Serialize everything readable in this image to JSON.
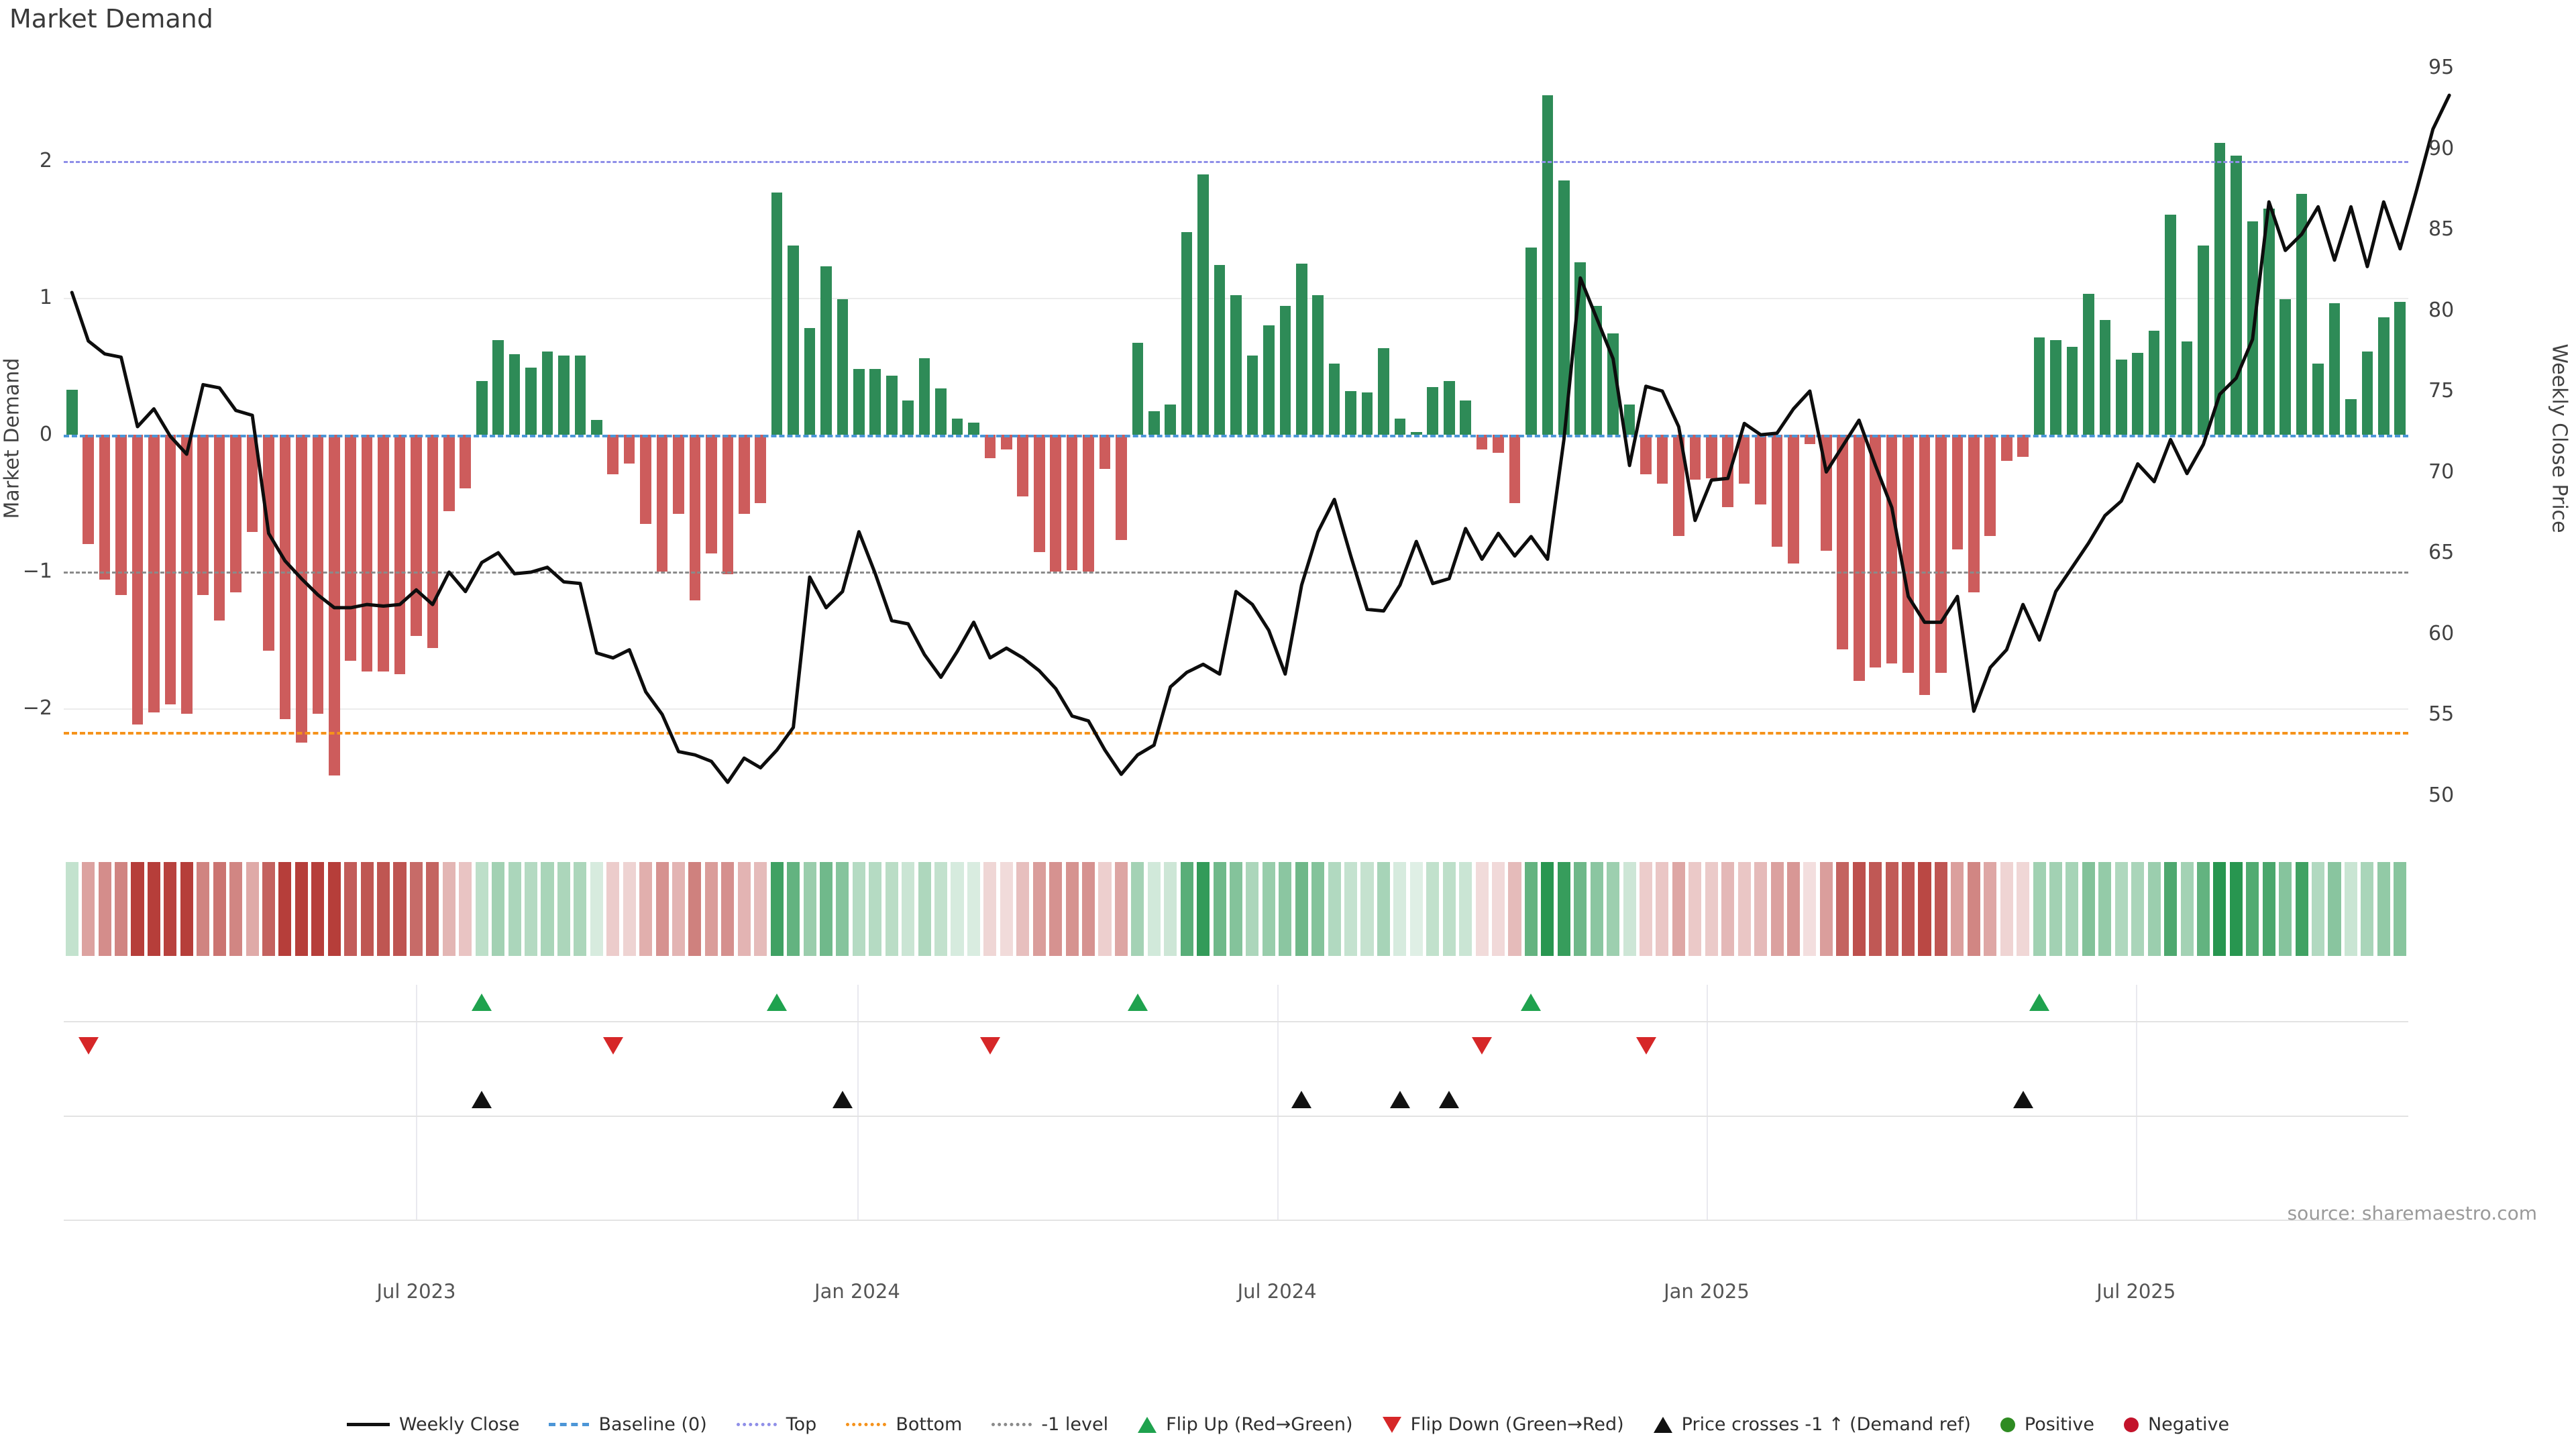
{
  "title": "Market Demand",
  "left_axis_title": "Market Demand",
  "right_axis_title": "Weekly Close Price",
  "source": "source: sharemaestro.com",
  "colors": {
    "positive_bar": "#2E8B57",
    "negative_bar": "#CD5C5C",
    "price_line": "#0d0d0d",
    "baseline": "#4C96D7",
    "top_line": "#8f8fe8",
    "bottom_line": "#F5921B",
    "minus1_line": "#8a8a8a",
    "flip_up": "#1fa24e",
    "flip_down": "#d62728",
    "price_cross": "#111111",
    "positive_dot": "#2E8B22",
    "negative_dot": "#C3132B"
  },
  "left_ticks": [
    2,
    1,
    0,
    -1,
    -2
  ],
  "right_ticks": [
    95,
    90,
    85,
    80,
    75,
    70,
    65,
    60,
    55,
    50
  ],
  "x_ticks": [
    {
      "label": "Jul 2023",
      "week": 22.0
    },
    {
      "label": "Jan 2024",
      "week": 48.9
    },
    {
      "label": "Jul 2024",
      "week": 74.5
    },
    {
      "label": "Jan 2025",
      "week": 100.7
    },
    {
      "label": "Jul 2025",
      "week": 126.9
    }
  ],
  "legend": [
    {
      "glyph": "line",
      "color": "#111111",
      "label": "Weekly Close"
    },
    {
      "glyph": "dash",
      "color": "#4C96D7",
      "label": "Baseline (0)"
    },
    {
      "glyph": "dot",
      "color": "#8f8fe8",
      "label": "Top"
    },
    {
      "glyph": "dot",
      "color": "#F5921B",
      "label": "Bottom"
    },
    {
      "glyph": "dot",
      "color": "#8a8a8a",
      "label": "-1 level"
    },
    {
      "glyph": "tri-up",
      "color": "#1fa24e",
      "label": "Flip Up (Red→Green)"
    },
    {
      "glyph": "tri-down",
      "color": "#d62728",
      "label": "Flip Down (Green→Red)"
    },
    {
      "glyph": "tri-up",
      "color": "#111111",
      "label": "Price crosses -1 ↑ (Demand ref)"
    },
    {
      "glyph": "circle",
      "color": "#2E8B22",
      "label": "Positive"
    },
    {
      "glyph": "circle",
      "color": "#C3132B",
      "label": "Negative"
    }
  ],
  "chart_data": {
    "type": "bar+line",
    "title": "Market Demand",
    "xlabel": "",
    "ylabel_left": "Market Demand",
    "ylabel_right": "Weekly Close Price",
    "ylim_left": [
      -2.88,
      2.82
    ],
    "ylim_right": [
      47.9,
      96.1
    ],
    "grid": true,
    "legend_position": "bottom",
    "reference_lines": {
      "baseline": 0,
      "top": 2,
      "minus1": -1,
      "bottom": -2.17
    },
    "weeks": 143,
    "demand": [
      0.33,
      -0.8,
      -1.06,
      -1.17,
      -2.12,
      -2.03,
      -1.97,
      -2.04,
      -1.17,
      -1.36,
      -1.15,
      -0.71,
      -1.58,
      -2.08,
      -2.25,
      -2.04,
      -2.49,
      -1.65,
      -1.73,
      -1.73,
      -1.75,
      -1.47,
      -1.56,
      -0.56,
      -0.39,
      0.39,
      0.69,
      0.59,
      0.49,
      0.61,
      0.58,
      0.58,
      0.11,
      -0.29,
      -0.21,
      -0.65,
      -1.0,
      -0.58,
      -1.21,
      -0.87,
      -1.02,
      -0.58,
      -0.5,
      1.77,
      1.38,
      0.78,
      1.23,
      0.99,
      0.48,
      0.48,
      0.43,
      0.25,
      0.56,
      0.34,
      0.12,
      0.09,
      -0.17,
      -0.11,
      -0.45,
      -0.86,
      -1.0,
      -0.99,
      -1.0,
      -0.25,
      -0.77,
      0.67,
      0.17,
      0.22,
      1.48,
      1.9,
      1.24,
      1.02,
      0.58,
      0.8,
      0.94,
      1.25,
      1.02,
      0.52,
      0.32,
      0.31,
      0.63,
      0.12,
      0.02,
      0.35,
      0.39,
      0.25,
      -0.11,
      -0.13,
      -0.5,
      1.37,
      2.48,
      1.86,
      1.26,
      0.94,
      0.74,
      0.22,
      -0.29,
      -0.36,
      -0.74,
      -0.33,
      -0.32,
      -0.53,
      -0.36,
      -0.51,
      -0.82,
      -0.94,
      -0.07,
      -0.85,
      -1.57,
      -1.8,
      -1.7,
      -1.67,
      -1.74,
      -1.9,
      -1.74,
      -0.84,
      -1.15,
      -0.74,
      -0.19,
      -0.16,
      0.71,
      0.69,
      0.64,
      1.03,
      0.84,
      0.55,
      0.6,
      0.76,
      1.61,
      0.68,
      1.38,
      2.13,
      2.04,
      1.56,
      1.65,
      0.99,
      1.76,
      0.52,
      0.96,
      0.26,
      0.61,
      0.86,
      0.97
    ],
    "price": [
      81.1,
      78.1,
      77.3,
      77.1,
      72.8,
      73.9,
      72.2,
      71.1,
      75.4,
      75.2,
      73.8,
      73.5,
      66.2,
      64.5,
      63.4,
      62.4,
      61.6,
      61.6,
      61.8,
      61.7,
      61.8,
      62.7,
      61.8,
      63.8,
      62.6,
      64.4,
      65.0,
      63.7,
      63.8,
      64.1,
      63.2,
      63.1,
      58.8,
      58.5,
      59.0,
      56.4,
      55.0,
      52.7,
      52.5,
      52.1,
      50.8,
      52.3,
      51.7,
      52.8,
      54.2,
      63.5,
      61.6,
      62.6,
      66.3,
      63.7,
      60.8,
      60.6,
      58.7,
      57.3,
      58.9,
      60.7,
      58.5,
      59.1,
      58.5,
      57.7,
      56.6,
      54.9,
      54.6,
      52.8,
      51.3,
      52.5,
      53.1,
      56.7,
      57.6,
      58.1,
      57.5,
      62.6,
      61.8,
      60.2,
      57.5,
      63.0,
      66.3,
      68.3,
      64.8,
      61.5,
      61.4,
      63.0,
      65.7,
      63.1,
      63.4,
      66.5,
      64.6,
      66.2,
      64.8,
      66.0,
      64.6,
      72.0,
      82.0,
      79.5,
      77.0,
      70.4,
      75.3,
      75.0,
      72.8,
      67.0,
      69.5,
      69.6,
      73.0,
      72.3,
      72.4,
      73.9,
      75.0,
      70.0,
      71.6,
      73.2,
      70.4,
      67.8,
      62.3,
      60.7,
      60.7,
      62.3,
      55.2,
      57.9,
      59.0,
      61.8,
      59.6,
      62.6,
      64.1,
      65.6,
      67.3,
      68.2,
      70.5,
      69.4,
      72.0,
      69.9,
      71.7,
      74.8,
      75.8,
      78.2,
      86.7,
      83.7,
      84.7,
      86.4,
      83.1,
      86.4,
      82.7,
      86.7,
      83.8,
      87.4,
      91.2,
      93.3
    ],
    "markers": {
      "flip_up_weeks": [
        26,
        44,
        66,
        90,
        121
      ],
      "flip_down_weeks": [
        2,
        34,
        57,
        87,
        97
      ],
      "price_cross_weeks": [
        26,
        48,
        76,
        82,
        85,
        120
      ]
    }
  }
}
